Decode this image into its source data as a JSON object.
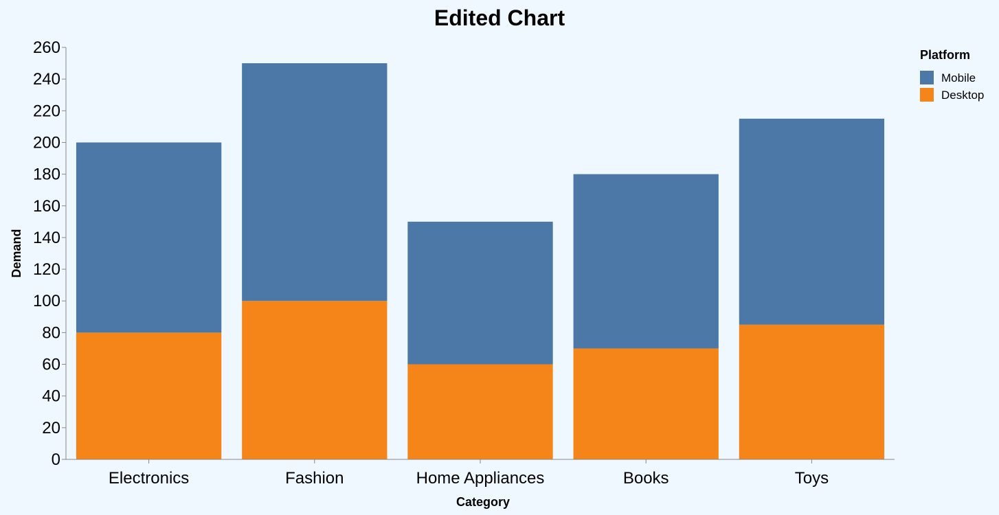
{
  "chart_data": {
    "type": "bar",
    "stacked": true,
    "title": "Edited Chart",
    "xlabel": "Category",
    "ylabel": "Demand",
    "categories": [
      "Electronics",
      "Fashion",
      "Home Appliances",
      "Books",
      "Toys"
    ],
    "series": [
      {
        "name": "Desktop",
        "color": "#f58518",
        "values": [
          80,
          100,
          60,
          70,
          85
        ]
      },
      {
        "name": "Mobile",
        "color": "#4c78a8",
        "values": [
          120,
          150,
          90,
          110,
          130
        ]
      }
    ],
    "ylim": [
      0,
      260
    ],
    "yticks": [
      "0",
      "20",
      "40",
      "60",
      "80",
      "100",
      "120",
      "140",
      "160",
      "180",
      "200",
      "220",
      "240",
      "260"
    ],
    "grid": false,
    "legend": {
      "title": "Platform",
      "placement": "top-right",
      "entries": [
        {
          "name": "Mobile",
          "color": "#4c78a8"
        },
        {
          "name": "Desktop",
          "color": "#f58518"
        }
      ]
    }
  }
}
